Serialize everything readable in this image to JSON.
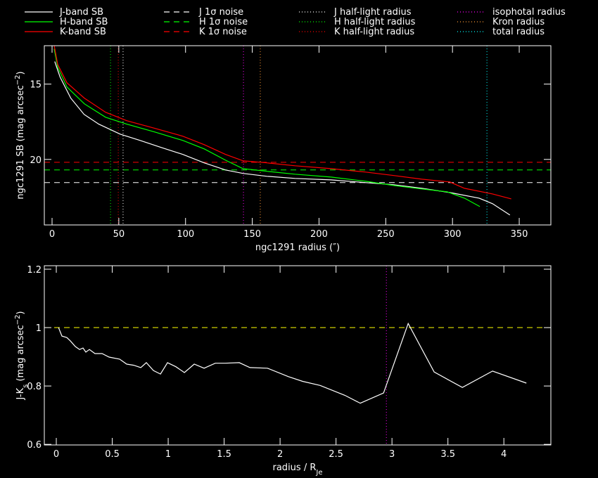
{
  "chart_data": [
    {
      "type": "line",
      "xlabel": [
        {
          "text": "ngc1291 radius (″)"
        }
      ],
      "ylabel": [
        {
          "text": "ngc1291 SB (mag arcsec"
        },
        {
          "text": "−2",
          "sup": true
        },
        {
          "text": ")"
        }
      ],
      "xlim": [
        -5.8,
        373.7
      ],
      "xticks": [
        0,
        50,
        100,
        150,
        200,
        250,
        300,
        350
      ],
      "ylim": [
        24.35,
        12.45
      ],
      "yticks": [
        15,
        20
      ],
      "legend": {
        "position": "top",
        "columns": 4
      },
      "series": [
        {
          "name": "J-band SB",
          "color": "#ffffff",
          "x": [
            2,
            6,
            14,
            24,
            35,
            51,
            66,
            82,
            98,
            114,
            130,
            143,
            161,
            182,
            209,
            235,
            256,
            277,
            298,
            320,
            330,
            343
          ],
          "values": [
            13.5,
            14.53,
            15.93,
            17.01,
            17.66,
            18.32,
            18.74,
            19.21,
            19.67,
            20.23,
            20.7,
            20.93,
            21.12,
            21.26,
            21.36,
            21.54,
            21.68,
            21.92,
            22.2,
            22.57,
            22.94,
            23.69
          ]
        },
        {
          "name": "H-band SB",
          "color": "#00ff00",
          "x": [
            1.6,
            4.2,
            11.1,
            24.2,
            40.1,
            55.9,
            77,
            98,
            114,
            130,
            143,
            161,
            182,
            209,
            235,
            256,
            277,
            296,
            309,
            320.5
          ],
          "values": [
            12.66,
            13.88,
            15.19,
            16.31,
            17.2,
            17.66,
            18.18,
            18.74,
            19.3,
            20.05,
            20.61,
            20.79,
            20.98,
            21.17,
            21.45,
            21.73,
            21.96,
            22.15,
            22.57,
            23.13
          ]
        },
        {
          "name": "K-band SB",
          "color": "#ff0000",
          "x": [
            1.6,
            4.2,
            11.1,
            24.2,
            40.1,
            55.9,
            77,
            98,
            114,
            130,
            143,
            161,
            182,
            209,
            235,
            256,
            277,
            298,
            309,
            330,
            344
          ],
          "values": [
            12.43,
            13.69,
            14.91,
            15.93,
            16.87,
            17.43,
            17.94,
            18.46,
            19.02,
            19.67,
            20.09,
            20.23,
            20.42,
            20.61,
            20.84,
            21.07,
            21.31,
            21.5,
            21.92,
            22.29,
            22.62
          ]
        }
      ],
      "hlines": [
        {
          "name": "J 1σ noise",
          "color": "#ffffff",
          "value": 21.54
        },
        {
          "name": "H 1σ noise",
          "color": "#00ff00",
          "value": 20.7
        },
        {
          "name": "K 1σ noise",
          "color": "#ff0000",
          "value": 20.19
        }
      ],
      "vlines": [
        {
          "name": "J half-light radius",
          "color": "#ffffff",
          "value": 53.2
        },
        {
          "name": "H half-light radius",
          "color": "#00ff00",
          "value": 43.8
        },
        {
          "name": "K half-light radius",
          "color": "#ff0000",
          "value": 49.6
        },
        {
          "name": "isophotal radius",
          "color": "#ff00ff",
          "value": 143.4
        },
        {
          "name": "Kron radius",
          "color": "#ff9933",
          "value": 156
        },
        {
          "name": "total radius",
          "color": "#00ffff",
          "value": 325.8
        }
      ]
    },
    {
      "type": "line",
      "xlabel": [
        {
          "text": "radius / R"
        },
        {
          "text": "Je",
          "sub": true
        }
      ],
      "ylabel": [
        {
          "text": "J-K"
        },
        {
          "text": "s",
          "sub": true
        },
        {
          "text": " (mag arcsec"
        },
        {
          "text": "−2",
          "sup": true
        },
        {
          "text": ")"
        }
      ],
      "xlim": [
        -0.107,
        4.42
      ],
      "xticks": [
        0,
        0.5,
        1,
        1.5,
        2,
        2.5,
        3,
        3.5,
        4
      ],
      "ylim": [
        0.598,
        1.212
      ],
      "yticks": [
        0.6,
        0.8,
        1,
        1.2
      ],
      "series": [
        {
          "color": "#ffffff",
          "x": [
            0.02,
            0.05,
            0.094,
            0.126,
            0.17,
            0.208,
            0.239,
            0.264,
            0.296,
            0.346,
            0.409,
            0.472,
            0.566,
            0.629,
            0.692,
            0.755,
            0.805,
            0.868,
            0.931,
            0.994,
            1.069,
            1.145,
            1.233,
            1.321,
            1.421,
            1.509,
            1.635,
            1.73,
            1.887,
            2.075,
            2.201,
            2.358,
            2.579,
            2.717,
            2.925,
            3.145,
            3.377,
            3.629,
            3.899,
            4.201
          ],
          "values": [
            1.0,
            0.971,
            0.966,
            0.954,
            0.935,
            0.925,
            0.93,
            0.916,
            0.925,
            0.911,
            0.911,
            0.899,
            0.892,
            0.875,
            0.871,
            0.863,
            0.88,
            0.853,
            0.841,
            0.88,
            0.866,
            0.846,
            0.875,
            0.861,
            0.878,
            0.878,
            0.88,
            0.863,
            0.861,
            0.832,
            0.816,
            0.802,
            0.768,
            0.741,
            0.776,
            1.014,
            0.848,
            0.795,
            0.851,
            0.81
          ]
        }
      ],
      "hlines": [
        {
          "color": "#ffff00",
          "value": 1
        }
      ],
      "vlines": [
        {
          "color": "#ff00ff",
          "value": 2.95
        }
      ]
    }
  ]
}
